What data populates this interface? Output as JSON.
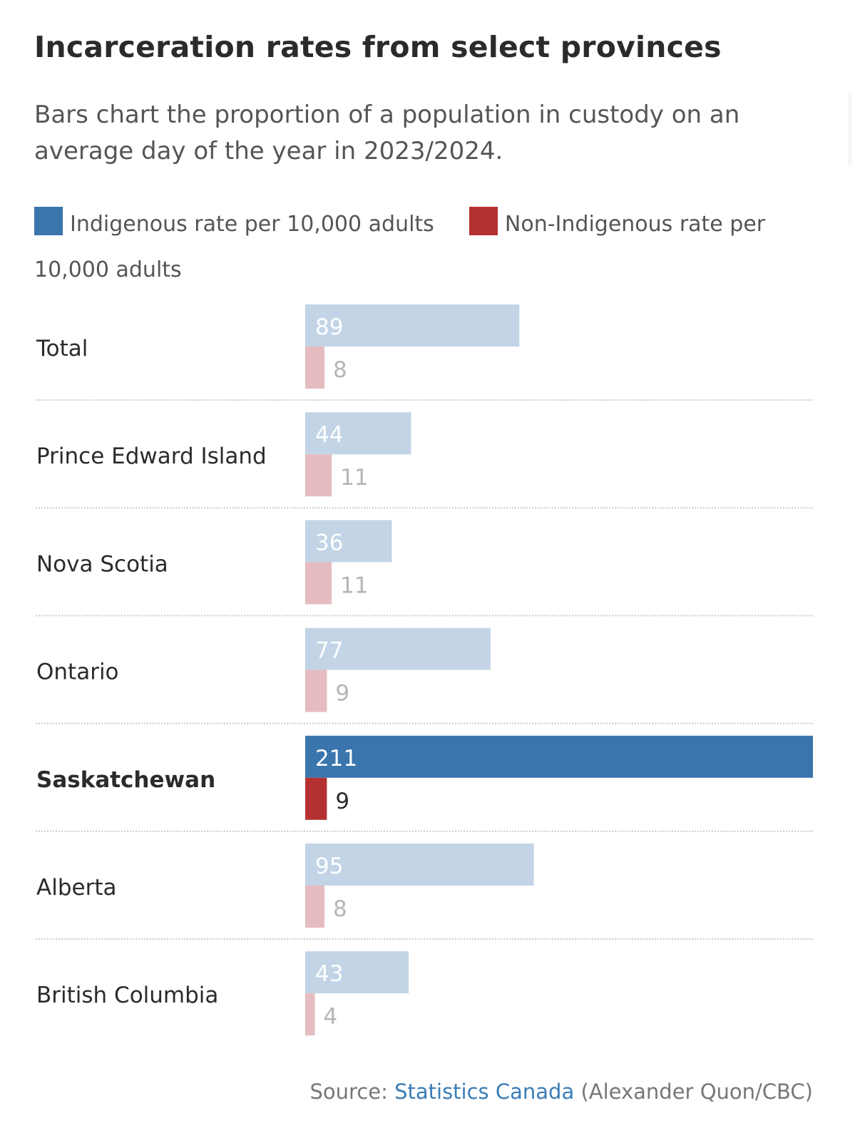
{
  "header": {
    "title": "Incarceration rates from select provinces",
    "subtitle": "Bars chart the proportion of a population in custody on an average day of the year in 2023/2024."
  },
  "legend": [
    {
      "label": "Indigenous rate per 10,000 adults",
      "color": "#3b75ad"
    },
    {
      "label": "Non-Indigenous rate per 10,000 adults",
      "color": "#b53131"
    }
  ],
  "footer": {
    "source_prefix": "Source:",
    "source_link": "Statistics Canada",
    "credit": "(Alexander Quon/CBC)"
  },
  "colors": {
    "indigenous": "#3b75ad",
    "non_indigenous": "#b53131",
    "indigenous_faded": "#c2d4e6",
    "non_indigenous_faded": "#e5bcc0",
    "label_on_bar": "#ffffff",
    "label_faded": "#b5b5b5",
    "label_dark": "#2b2b2b",
    "separator": "#cccccc"
  },
  "chart_data": {
    "type": "bar",
    "orientation": "horizontal",
    "title": "Incarceration rates from select provinces",
    "subtitle": "Bars chart the proportion of a population in custody on an average day of the year in 2023/2024.",
    "xlabel": "",
    "ylabel": "",
    "xlim": [
      0,
      211
    ],
    "grid": false,
    "legend_position": "top",
    "highlighted_category": "Saskatchewan",
    "categories": [
      "Total",
      "Prince Edward Island",
      "Nova Scotia",
      "Ontario",
      "Saskatchewan",
      "Alberta",
      "British Columbia"
    ],
    "series": [
      {
        "name": "Indigenous rate per 10,000 adults",
        "values": [
          89,
          44,
          36,
          77,
          211,
          95,
          43
        ]
      },
      {
        "name": "Non-Indigenous rate per 10,000 adults",
        "values": [
          8,
          11,
          11,
          9,
          9,
          8,
          4
        ]
      }
    ]
  }
}
